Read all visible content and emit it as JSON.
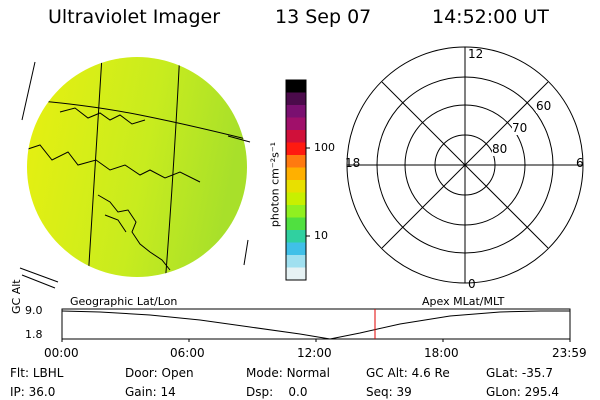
{
  "header": {
    "instrument": "Ultraviolet Imager",
    "date": "13 Sep 07",
    "time": "14:52:00 UT"
  },
  "colorbar": {
    "label": "photon cm⁻²s⁻¹",
    "ticks": [
      "100",
      "10"
    ],
    "colors": [
      "#000000",
      "#4b0b4b",
      "#7a1070",
      "#a0106a",
      "#d0103a",
      "#ff1a10",
      "#ff7a10",
      "#ffb000",
      "#e8e000",
      "#c8f000",
      "#90f020",
      "#50e040",
      "#30d0a0",
      "#40c0e8",
      "#a0e0f0",
      "#e6f2f4"
    ]
  },
  "image": {
    "panel_label": "Geographic Lat/Lon",
    "fill_colors": [
      "#e8f010",
      "#c8ec1e",
      "#a8e02a"
    ]
  },
  "polar": {
    "panel_label": "Apex MLat/MLT",
    "mlt_labels": {
      "top": "12",
      "left": "18",
      "right": "6",
      "bottom": "0"
    },
    "lat_labels": [
      "60",
      "70",
      "80"
    ]
  },
  "altitude_plot": {
    "ylabel": "GC Alt",
    "yticks": [
      "9.0",
      "1.8"
    ],
    "xticks": [
      "00:00",
      "06:00",
      "12:00",
      "18:00",
      "23:59"
    ],
    "current_marker_color": "#e00000"
  },
  "status": {
    "row1": [
      {
        "key": "Flt:",
        "value": "LBHL"
      },
      {
        "key": "Door:",
        "value": "Open"
      },
      {
        "key": "Mode:",
        "value": "Normal"
      },
      {
        "key": "GC Alt:",
        "value": "4.6 Re"
      },
      {
        "key": "GLat:",
        "value": "-35.7"
      }
    ],
    "row2": [
      {
        "key": "IP:",
        "value": "36.0"
      },
      {
        "key": "Gain:",
        "value": "14"
      },
      {
        "key": "Dsp:",
        "value": "0.0"
      },
      {
        "key": "Seq:",
        "value": "39"
      },
      {
        "key": "GLon:",
        "value": "295.4"
      }
    ]
  }
}
